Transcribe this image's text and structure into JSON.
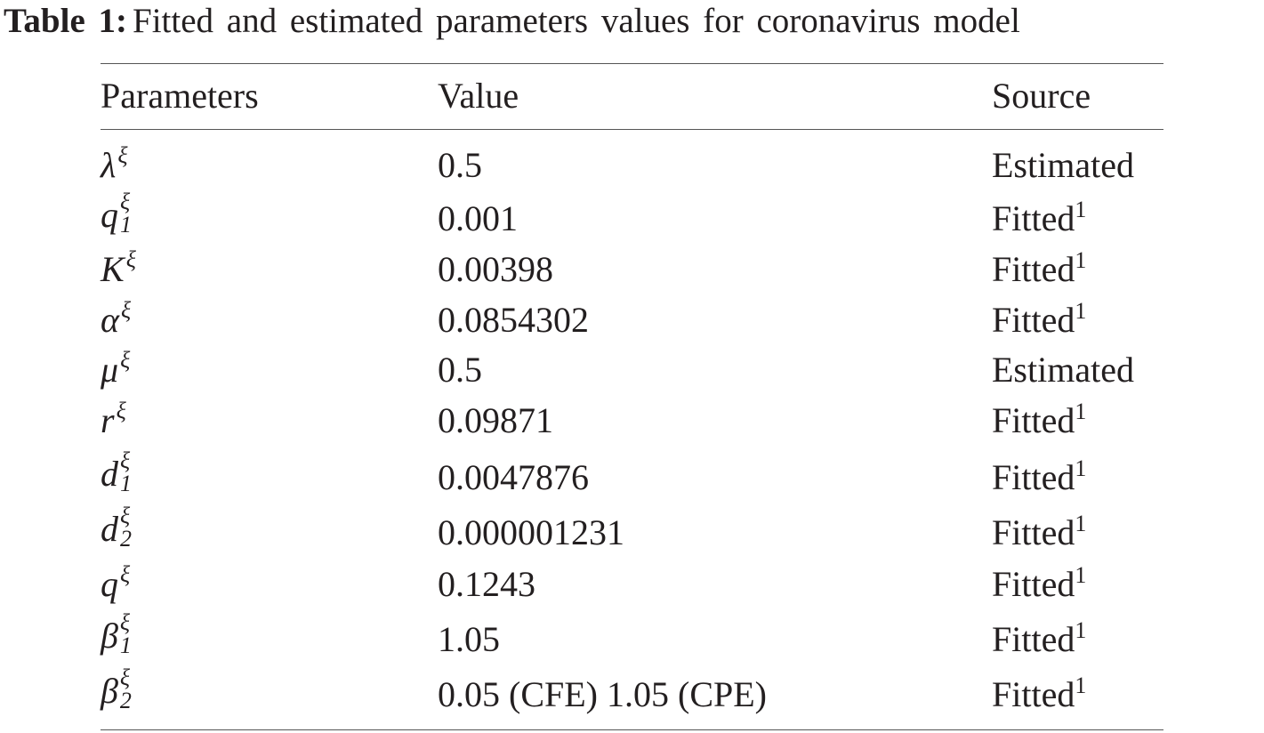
{
  "caption": {
    "label": "Table 1:",
    "text": "Fitted and estimated parameters values for coronavirus model"
  },
  "table": {
    "header": [
      "Parameters",
      "Value",
      "Source"
    ],
    "rows": [
      {
        "param": {
          "base": "λ",
          "sup": "ξ"
        },
        "value": "0.5",
        "source": {
          "text": "Estimated"
        }
      },
      {
        "param": {
          "base": "q",
          "sup": "ξ",
          "sub": "1"
        },
        "value": "0.001",
        "source": {
          "text": "Fitted",
          "sup": "1"
        }
      },
      {
        "param": {
          "base": "K",
          "sup": "ξ"
        },
        "value": "0.00398",
        "source": {
          "text": "Fitted",
          "sup": "1"
        }
      },
      {
        "param": {
          "base": "α",
          "sup": "ξ"
        },
        "value": "0.0854302",
        "source": {
          "text": "Fitted",
          "sup": "1"
        }
      },
      {
        "param": {
          "base": "μ",
          "sup": "ξ"
        },
        "value": "0.5",
        "source": {
          "text": "Estimated"
        }
      },
      {
        "param": {
          "base": "r",
          "sup": "ξ"
        },
        "value": "0.09871",
        "source": {
          "text": "Fitted",
          "sup": "1"
        }
      },
      {
        "param": {
          "base": "d",
          "sup": "ξ",
          "sub": "1"
        },
        "value": "0.0047876",
        "source": {
          "text": "Fitted",
          "sup": "1"
        }
      },
      {
        "param": {
          "base": "d",
          "sup": "ξ",
          "sub": "2"
        },
        "value": "0.000001231",
        "source": {
          "text": "Fitted",
          "sup": "1"
        }
      },
      {
        "param": {
          "base": "q",
          "sup": "ξ"
        },
        "value": "0.1243",
        "source": {
          "text": "Fitted",
          "sup": "1"
        }
      },
      {
        "param": {
          "base": "β",
          "sup": "ξ",
          "sub": "1"
        },
        "value": "1.05",
        "source": {
          "text": "Fitted",
          "sup": "1"
        }
      },
      {
        "param": {
          "base": "β",
          "sup": "ξ",
          "sub": "2"
        },
        "value": "0.05 (CFE) 1.05 (CPE)",
        "source": {
          "text": "Fitted",
          "sup": "1"
        }
      }
    ]
  }
}
